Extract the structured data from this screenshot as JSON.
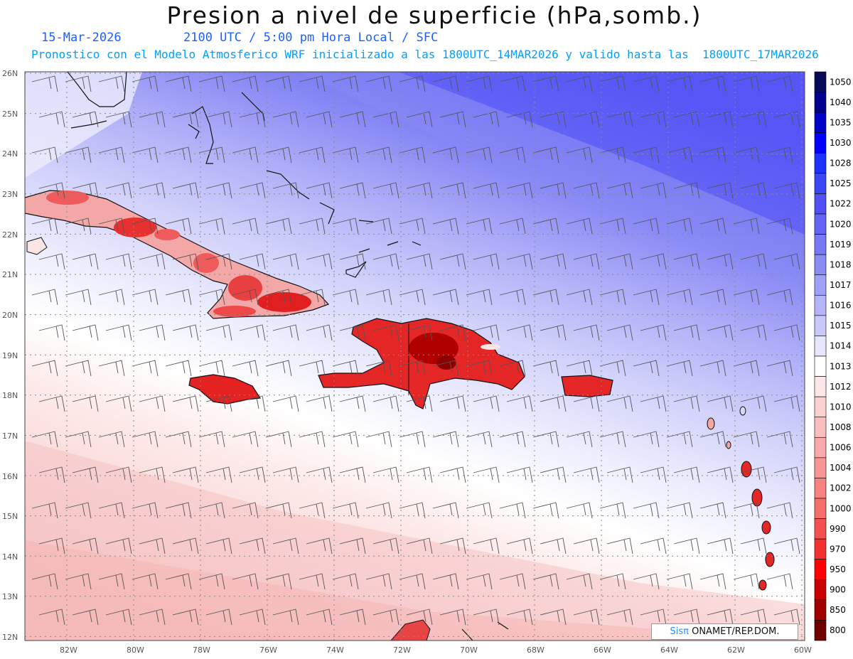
{
  "title": "Presion a nivel de superficie (hPa,somb.)",
  "date": "15-Mar-2026",
  "time_line": "2100 UTC / 5:00 pm Hora Local / SFC",
  "forecast_line": "Pronostico con el Modelo Atmosferico WRF inicializado a las 1800UTC_14MAR2026 y valido hasta las  1800UTC_17MAR2026",
  "latitudes": [
    "26N",
    "25N",
    "24N",
    "23N",
    "22N",
    "21N",
    "20N",
    "19N",
    "18N",
    "17N",
    "16N",
    "15N",
    "14N",
    "13N",
    "12N"
  ],
  "longitudes": [
    "82W",
    "80W",
    "78W",
    "76W",
    "74W",
    "72W",
    "70W",
    "68W",
    "66W",
    "64W",
    "62W",
    "60W"
  ],
  "colorbar": {
    "labels": [
      "1050",
      "1040",
      "1035",
      "1030",
      "1028",
      "1025",
      "1022",
      "1020",
      "1019",
      "1018",
      "1017",
      "1016",
      "1015",
      "1014",
      "1013",
      "1012",
      "1010",
      "1008",
      "1006",
      "1004",
      "1002",
      "1000",
      "990",
      "970",
      "950",
      "900",
      "850",
      "800"
    ],
    "colors": [
      "#0a0a5a",
      "#00008c",
      "#0000c8",
      "#0000ff",
      "#1e32ff",
      "#3c46f5",
      "#5050f5",
      "#6464f5",
      "#7878f5",
      "#8c8cf5",
      "#a0a0f8",
      "#b4b4fa",
      "#c8c8fa",
      "#e6e6fc",
      "#ffffff",
      "#fce6e6",
      "#fad2d2",
      "#fabebe",
      "#faaaaa",
      "#f89696",
      "#f88282",
      "#f56e6e",
      "#f55050",
      "#f53232",
      "#ff0000",
      "#c80000",
      "#a00000",
      "#6e0000"
    ]
  },
  "credit": {
    "brand": "Sisπ",
    "text": " ONAMET/REP.DOM."
  }
}
